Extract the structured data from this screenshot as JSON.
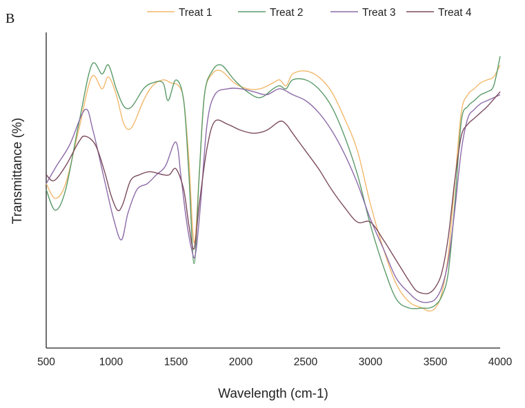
{
  "chart_data": {
    "type": "line",
    "panel_label": "B",
    "title": "",
    "xlabel": "Wavelength (cm-1)",
    "ylabel": "Transmittance (%)",
    "xlim": [
      500,
      4000
    ],
    "ylim": [
      0,
      100
    ],
    "xticks": [
      500,
      1000,
      1500,
      2000,
      2500,
      3000,
      3500,
      4000
    ],
    "grid": false,
    "legend_position": "top",
    "series": [
      {
        "name": "Treat 1",
        "color": "#f2b86c",
        "x": [
          500,
          570,
          650,
          750,
          850,
          930,
          980,
          1040,
          1100,
          1160,
          1250,
          1320,
          1400,
          1460,
          1520,
          1560,
          1600,
          1640,
          1680,
          1720,
          1780,
          1850,
          1950,
          2050,
          2150,
          2250,
          2300,
          2350,
          2400,
          2500,
          2600,
          2700,
          2800,
          2900,
          3000,
          3100,
          3200,
          3300,
          3400,
          3450,
          3500,
          3550,
          3600,
          3650,
          3700,
          3750,
          3800,
          3850,
          3900,
          3950,
          4000
        ],
        "y": [
          52,
          47,
          52,
          70,
          88,
          84,
          88,
          82,
          72,
          71,
          80,
          85,
          87,
          86,
          85,
          80,
          60,
          32,
          55,
          82,
          89,
          90,
          86,
          84,
          84,
          86,
          87,
          85,
          89,
          90,
          88,
          83,
          74,
          63,
          45,
          30,
          18,
          12,
          10,
          9,
          10,
          15,
          28,
          52,
          76,
          82,
          84,
          86,
          87,
          88,
          92
        ]
      },
      {
        "name": "Treat 2",
        "color": "#5a9a68",
        "x": [
          500,
          570,
          650,
          750,
          850,
          930,
          980,
          1040,
          1100,
          1160,
          1250,
          1320,
          1400,
          1440,
          1500,
          1560,
          1600,
          1640,
          1680,
          1720,
          1780,
          1850,
          1950,
          2050,
          2150,
          2250,
          2300,
          2350,
          2400,
          2500,
          2600,
          2700,
          2800,
          2900,
          3000,
          3100,
          3200,
          3300,
          3400,
          3450,
          3500,
          3550,
          3600,
          3650,
          3700,
          3750,
          3800,
          3850,
          3900,
          3950,
          4000
        ],
        "y": [
          50,
          43,
          50,
          72,
          92,
          89,
          92,
          84,
          78,
          78,
          84,
          86,
          86,
          80,
          87,
          80,
          55,
          25,
          55,
          82,
          90,
          92,
          87,
          83,
          81,
          84,
          85,
          84,
          87,
          87,
          84,
          78,
          68,
          55,
          38,
          24,
          13,
          10,
          10,
          10,
          11,
          14,
          22,
          45,
          73,
          78,
          80,
          82,
          83,
          85,
          95
        ]
      },
      {
        "name": "Treat 3",
        "color": "#8c6aa8",
        "x": [
          500,
          580,
          680,
          800,
          860,
          950,
          1020,
          1080,
          1130,
          1200,
          1280,
          1350,
          1420,
          1500,
          1540,
          1580,
          1620,
          1650,
          1690,
          1740,
          1800,
          1900,
          2000,
          2100,
          2200,
          2300,
          2400,
          2500,
          2600,
          2700,
          2800,
          2900,
          3000,
          3100,
          3200,
          3300,
          3350,
          3400,
          3450,
          3500,
          3550,
          3600,
          3650,
          3700,
          3750,
          3800,
          3850,
          3900,
          3950,
          4000
        ],
        "y": [
          52,
          58,
          65,
          77,
          70,
          53,
          40,
          33,
          42,
          50,
          52,
          55,
          58,
          66,
          54,
          40,
          30,
          28,
          45,
          72,
          82,
          84,
          84,
          83,
          82,
          84,
          82,
          80,
          76,
          70,
          62,
          52,
          40,
          30,
          20,
          15,
          13,
          12,
          12,
          13,
          17,
          26,
          43,
          63,
          74,
          77,
          79,
          80,
          81,
          82
        ]
      },
      {
        "name": "Treat 4",
        "color": "#7a4a5c",
        "x": [
          500,
          560,
          650,
          750,
          800,
          880,
          950,
          1000,
          1050,
          1090,
          1150,
          1220,
          1300,
          1400,
          1450,
          1500,
          1560,
          1600,
          1640,
          1680,
          1740,
          1800,
          1900,
          2000,
          2100,
          2200,
          2300,
          2350,
          2400,
          2500,
          2600,
          2700,
          2800,
          2900,
          3000,
          3100,
          3200,
          3300,
          3350,
          3400,
          3450,
          3500,
          3550,
          3600,
          3650,
          3700,
          3750,
          3800,
          3850,
          3900,
          4000
        ],
        "y": [
          55,
          53,
          58,
          66,
          68,
          65,
          56,
          48,
          43,
          45,
          53,
          55,
          56,
          55,
          55,
          57,
          50,
          38,
          30,
          45,
          64,
          73,
          72,
          70,
          69,
          70,
          73,
          72,
          69,
          63,
          57,
          50,
          44,
          39,
          39,
          33,
          26,
          19,
          16,
          15,
          15,
          17,
          22,
          34,
          53,
          68,
          72,
          74,
          76,
          78,
          83
        ]
      }
    ]
  }
}
